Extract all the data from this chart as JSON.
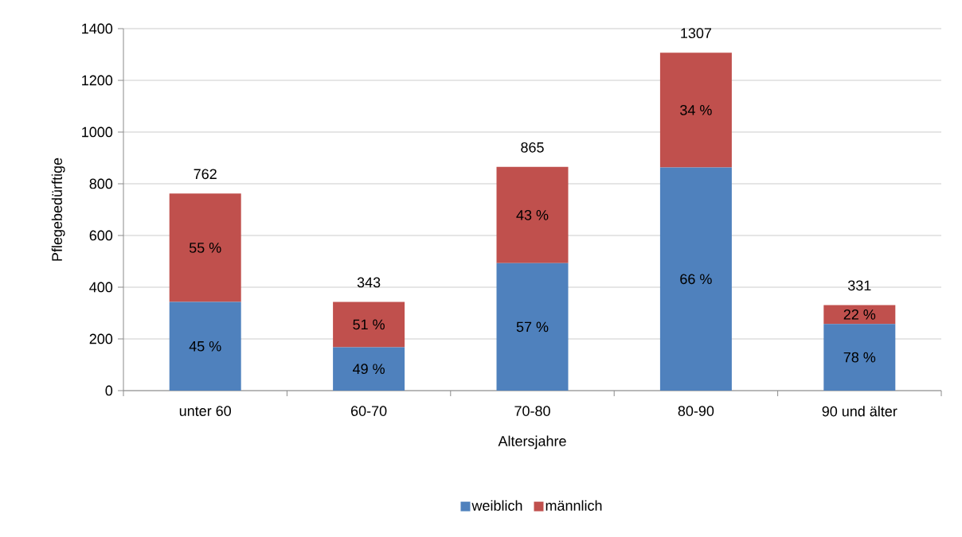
{
  "chart_data": {
    "type": "bar",
    "stacked": true,
    "xlabel": "Altersjahre",
    "ylabel": "Pflegebedürftige",
    "categories": [
      "unter 60",
      "60-70",
      "70-80",
      "80-90",
      "90 und älter"
    ],
    "series": [
      {
        "name": "weiblich",
        "color": "#4f81bd",
        "values": [
          343,
          168,
          493,
          863,
          258
        ]
      },
      {
        "name": "männlich",
        "color": "#c0504d",
        "values": [
          419,
          175,
          372,
          444,
          73
        ]
      }
    ],
    "annotations": [
      "45 %",
      "49 %",
      "57 %",
      "66 %",
      "78 %",
      "55 %",
      "51 %",
      "43 %",
      "34 %",
      "22 %"
    ],
    "totals": [
      "762",
      "343",
      "865",
      "1307",
      "331"
    ],
    "ylim": [
      0,
      1400
    ],
    "yticks": [
      0,
      200,
      400,
      600,
      800,
      1000,
      1200,
      1400
    ],
    "grid": "y",
    "legend": "bottom"
  }
}
